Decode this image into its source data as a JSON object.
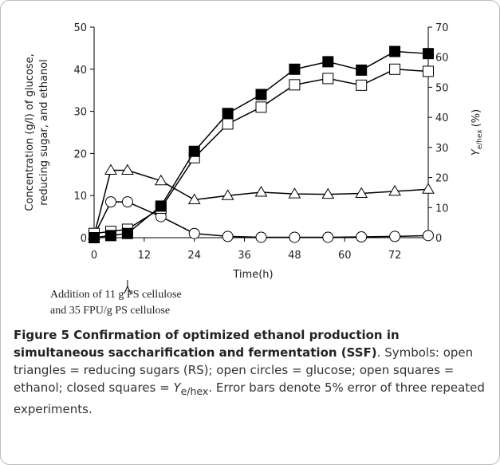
{
  "chart_data": {
    "type": "line",
    "ylabel": [
      "Concentration (g/l) of glucose,",
      "reducing sugar, and ethanol"
    ],
    "y2label": {
      "main": "Y",
      "sub": "e/hex",
      "unit": "(%)"
    },
    "xlabel": "Time(h)",
    "x": [
      0,
      4,
      8,
      16,
      24,
      32,
      40,
      48,
      56,
      64,
      72,
      80
    ],
    "xlim": [
      0,
      80
    ],
    "xticks": [
      0,
      12,
      24,
      36,
      48,
      60,
      72
    ],
    "ylim": [
      0,
      50
    ],
    "yticks": [
      0,
      10,
      20,
      30,
      40,
      50
    ],
    "y2lim": [
      0,
      70
    ],
    "y2ticks": [
      0,
      10,
      20,
      30,
      40,
      50,
      60,
      70
    ],
    "series": [
      {
        "marker": "triangle",
        "fill": "open",
        "color": "#000",
        "values": [
          0.5,
          16,
          16,
          13.5,
          9,
          10,
          10.8,
          10.4,
          10.3,
          10.5,
          11,
          11.5
        ]
      },
      {
        "marker": "circle",
        "fill": "open",
        "color": "#000",
        "values": [
          0.5,
          8.5,
          8.5,
          5,
          1,
          0.3,
          0.1,
          0.1,
          0.1,
          0.2,
          0.3,
          0.5
        ]
      },
      {
        "marker": "square",
        "fill": "open",
        "color": "#000",
        "values": [
          1,
          1.5,
          2,
          7,
          19,
          27,
          31,
          36.3,
          37.8,
          36.2,
          40,
          39.5
        ]
      },
      {
        "marker": "square",
        "fill": "closed",
        "color": "#000",
        "axis": "y2",
        "values": [
          0,
          0.7,
          1.4,
          10.5,
          28.7,
          41.3,
          47.6,
          56,
          58.5,
          55.7,
          61.9,
          61.2
        ]
      }
    ],
    "annotation": {
      "x": 8,
      "lines": [
        "Addition of 11 g PS cellulose",
        "and 35 FPU/g PS cellulose"
      ]
    }
  },
  "caption": {
    "title": "Figure 5 Confirmation of optimized ethanol production in simultaneous saccharification and fermentation (SSF)",
    "text1": ". Symbols: open triangles = reducing sugars (RS); open circles = glucose; open squares = ethanol; closed squares = ",
    "sym": "Y",
    "sub": "e/hex",
    "text2": ". Error bars denote 5% error of three repeated experiments."
  }
}
